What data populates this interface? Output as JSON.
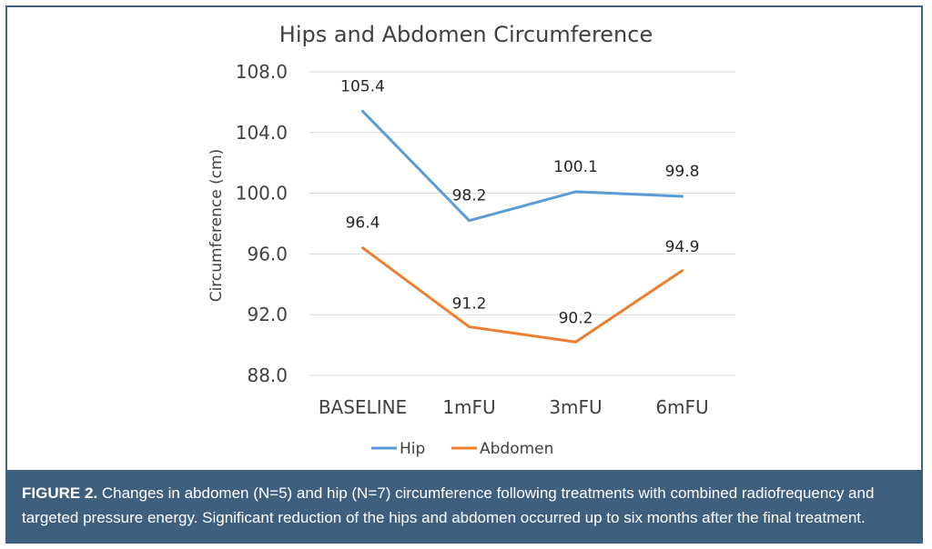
{
  "chart_data": {
    "type": "line",
    "title": "Hips and Abdomen Circumference",
    "ylabel": "Circumference (cm)",
    "xlabel": "",
    "categories": [
      "BASELINE",
      "1mFU",
      "3mFU",
      "6mFU"
    ],
    "ylim": [
      88.0,
      108.0
    ],
    "yticks": [
      "88.0",
      "92.0",
      "96.0",
      "100.0",
      "104.0",
      "108.0"
    ],
    "grid": true,
    "legend_position": "bottom",
    "series": [
      {
        "name": "Hip",
        "color": "#5b9bd5",
        "values": [
          105.4,
          98.2,
          100.1,
          99.8
        ],
        "labels": [
          "105.4",
          "98.2",
          "100.1",
          "99.8"
        ]
      },
      {
        "name": "Abdomen",
        "color": "#ed7d31",
        "values": [
          96.4,
          91.2,
          90.2,
          94.9
        ],
        "labels": [
          "96.4",
          "91.2",
          "90.2",
          "94.9"
        ]
      }
    ]
  },
  "caption": {
    "label": "FIGURE 2.",
    "text": "Changes in abdomen (N=5) and hip (N=7) circumference following treatments with combined radiofrequency and targeted pressure energy. Significant reduction of the hips and abdomen occurred up to six months after the final treatment."
  }
}
